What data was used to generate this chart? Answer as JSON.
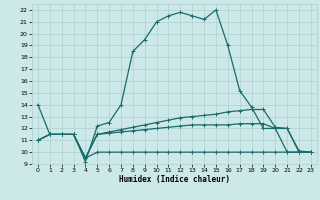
{
  "xlabel": "Humidex (Indice chaleur)",
  "bg_color": "#cce8e8",
  "grid_color": "#aed0d0",
  "line_color": "#1a6b6b",
  "xlim": [
    -0.5,
    23.5
  ],
  "ylim": [
    9,
    22.5
  ],
  "xticks": [
    0,
    1,
    2,
    3,
    4,
    5,
    6,
    7,
    8,
    9,
    10,
    11,
    12,
    13,
    14,
    15,
    16,
    17,
    18,
    19,
    20,
    21,
    22,
    23
  ],
  "yticks": [
    9,
    10,
    11,
    12,
    13,
    14,
    15,
    16,
    17,
    18,
    19,
    20,
    21,
    22
  ],
  "line1_x": [
    0,
    1,
    2,
    3,
    4,
    5,
    6,
    7,
    8,
    9,
    10,
    11,
    12,
    13,
    14,
    15,
    16,
    17,
    18,
    19,
    20,
    21,
    22,
    23
  ],
  "line1_y": [
    14,
    11.5,
    11.5,
    11.5,
    9.2,
    12.2,
    12.5,
    14,
    18.5,
    19.5,
    21,
    21.5,
    21.8,
    21.5,
    21.2,
    22,
    19.0,
    15.2,
    13.8,
    12,
    12,
    10,
    10,
    10
  ],
  "line2_x": [
    0,
    1,
    2,
    3,
    4,
    5,
    6,
    7,
    8,
    9,
    10,
    11,
    12,
    13,
    14,
    15,
    16,
    17,
    18,
    19,
    20,
    21,
    22,
    23
  ],
  "line2_y": [
    11,
    11.5,
    11.5,
    11.5,
    9.5,
    11.5,
    11.7,
    11.9,
    12.1,
    12.3,
    12.5,
    12.7,
    12.9,
    13.0,
    13.1,
    13.2,
    13.4,
    13.5,
    13.6,
    13.6,
    12.1,
    12.0,
    10.1,
    10.0
  ],
  "line3_x": [
    0,
    1,
    2,
    3,
    4,
    5,
    6,
    7,
    8,
    9,
    10,
    11,
    12,
    13,
    14,
    15,
    16,
    17,
    18,
    19,
    20,
    21,
    22,
    23
  ],
  "line3_y": [
    11,
    11.5,
    11.5,
    11.5,
    9.5,
    11.5,
    11.6,
    11.7,
    11.8,
    11.9,
    12.0,
    12.1,
    12.2,
    12.3,
    12.3,
    12.3,
    12.3,
    12.4,
    12.4,
    12.4,
    12.0,
    12.0,
    10.0,
    10.0
  ],
  "line4_x": [
    0,
    1,
    2,
    3,
    4,
    5,
    6,
    7,
    8,
    9,
    10,
    11,
    12,
    13,
    14,
    15,
    16,
    17,
    18,
    19,
    20,
    21,
    22,
    23
  ],
  "line4_y": [
    11,
    11.5,
    11.5,
    11.5,
    9.5,
    10.0,
    10.0,
    10.0,
    10.0,
    10.0,
    10.0,
    10.0,
    10.0,
    10.0,
    10.0,
    10.0,
    10.0,
    10.0,
    10.0,
    10.0,
    10.0,
    10.0,
    10.0,
    10.0
  ]
}
